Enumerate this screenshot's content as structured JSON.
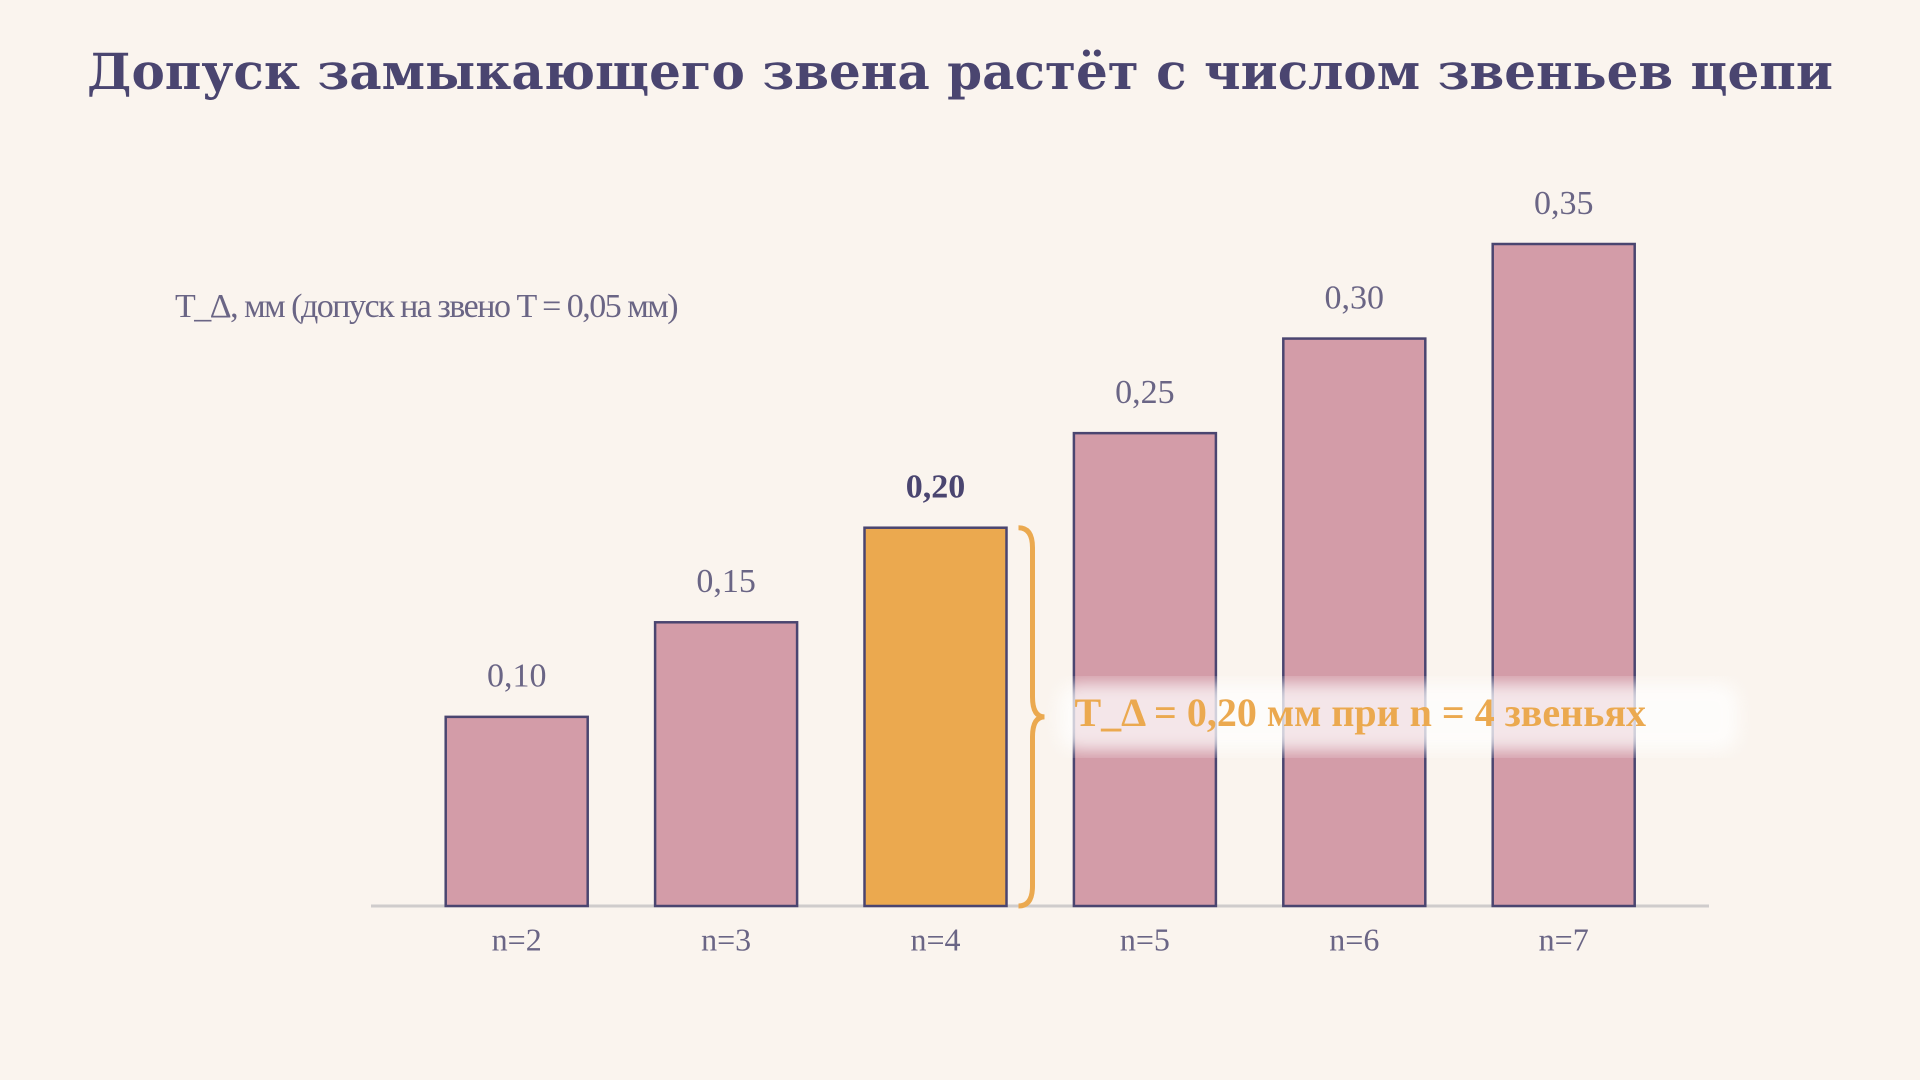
{
  "chart_data": {
    "type": "bar",
    "title": "Допуск замыкающего звена растёт с числом звеньев цепи",
    "y_label": "T_Δ, мм (допуск на звено T = 0,05 мм)",
    "categories": [
      "n=2",
      "n=3",
      "n=4",
      "n=5",
      "n=6",
      "n=7"
    ],
    "values": [
      0.1,
      0.15,
      0.2,
      0.25,
      0.3,
      0.35
    ],
    "value_labels": [
      "0,10",
      "0,15",
      "0,20",
      "0,25",
      "0,30",
      "0,35"
    ],
    "color": "#d39ca8",
    "highlight": 2,
    "highlight_color": "#eba94f",
    "annotation": "T_Δ = 0,20 мм при n = 4 звеньях",
    "ylim": [
      0,
      0.35
    ]
  }
}
